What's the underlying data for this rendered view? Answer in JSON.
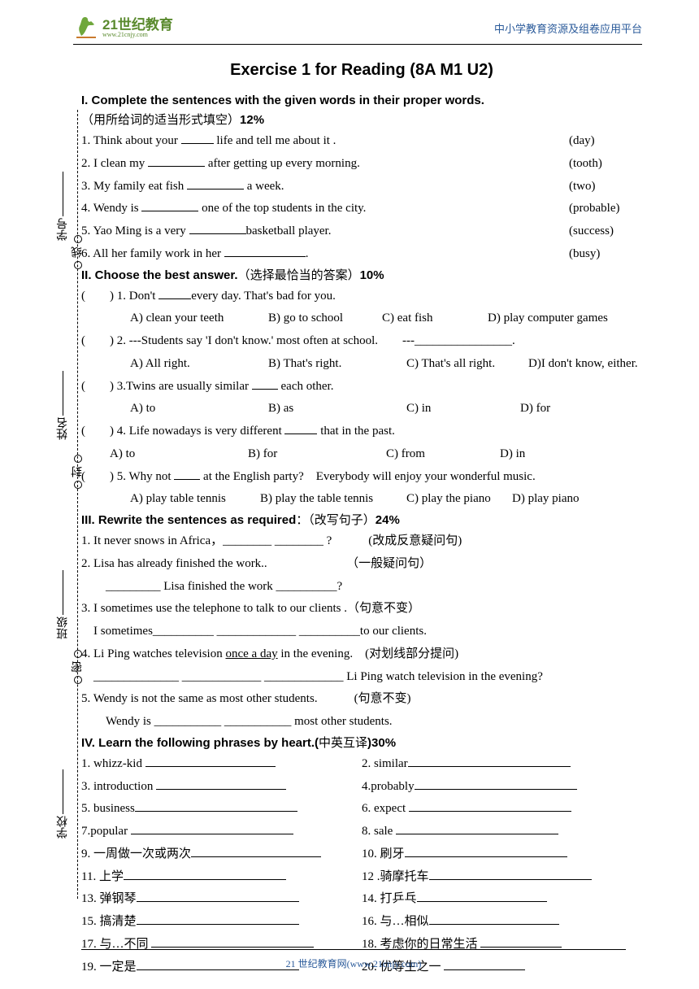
{
  "header": {
    "logo_brand": "21世纪教育",
    "logo_url": "www.21cnjy.com",
    "right_text": "中小学教育资源及组卷应用平台"
  },
  "title": "Exercise 1 for Reading (8A M1 U2)",
  "section1": {
    "header_en": "I. Complete the sentences with the given words in their proper words.",
    "header_cn": "（用所给词的适当形式填空）",
    "header_pct": "12%",
    "items": [
      {
        "text_a": "1. Think about your ",
        "text_b": " life and tell me about it .",
        "hint": "(day)",
        "blank": "blank-s"
      },
      {
        "text_a": "2. I clean my ",
        "text_b": " after getting up every morning.",
        "hint": "(tooth)",
        "blank": "blank-m"
      },
      {
        "text_a": "3. My family eat fish ",
        "text_b": " a week.",
        "hint": "(two)",
        "blank": "blank-m"
      },
      {
        "text_a": "4. Wendy is ",
        "text_b": " one of the top students in the city.",
        "hint": "(probable)",
        "blank": "blank-m"
      },
      {
        "text_a": "5. Yao Ming is a very ",
        "text_b": "basketball player.",
        "hint": "(success)",
        "blank": "blank-m"
      },
      {
        "text_a": "6. All her family work in her ",
        "text_b": ".",
        "hint": "(busy)",
        "blank": "blank-l"
      }
    ]
  },
  "section2": {
    "header_en": "II. Choose the best answer.",
    "header_cn": "（选择最恰当的答案）",
    "header_pct": "10%",
    "q1": {
      "stem_a": "(　　) 1. Don't ",
      "stem_b": "every day. That's bad for you.",
      "a": "A) clean your teeth",
      "b": "B) go to school",
      "c": "C) eat fish",
      "d": "D) play computer games"
    },
    "q2": {
      "stem": "(　　) 2. ---Students say 'I don't know.' most often at school.　　---________________.",
      "a": "A) All right.",
      "b": "B) That's right.",
      "c": "C) That's all right.",
      "d": "D)I don't know, either."
    },
    "q3": {
      "stem_a": "(　　) 3.Twins are usually similar ",
      "stem_b": " each other.",
      "a": "A) to",
      "b": "B) as",
      "c": "C) in",
      "d": "D) for"
    },
    "q4": {
      "stem_a": "(　　) 4. Life nowadays is very different ",
      "stem_b": " that in the past.",
      "a": "A) to",
      "b": "B) for",
      "c": "C) from",
      "d": "D) in"
    },
    "q5": {
      "stem_a": "(　　) 5. Why not ",
      "stem_b": " at the English party?　Everybody will enjoy your wonderful music.",
      "a": "A) play table tennis",
      "b": "B) play the table tennis",
      "c": "C) play the piano",
      "d": "D) play piano"
    }
  },
  "section3": {
    "header_en": "III. Rewrite the sentences as required",
    "header_cn": "：（改写句子）",
    "header_pct": "24%",
    "l1": "1. It never snows in Africa，________  ________ ?　　　(改成反意疑问句)",
    "l2": "2. Lisa has already finished the work..　　　　　　　（一般疑问句）",
    "l2b": "　　_________ Lisa finished the work  __________?",
    "l3": "3. I sometimes use the telephone to talk to our clients .（句意不变）",
    "l3b": "　I sometimes__________  _____________  __________to our clients.",
    "l4_a": "4. Li Ping watches television ",
    "l4_u": "once a day",
    "l4_b": " in the evening.　(对划线部分提问)",
    "l4b": "　______________  _____________  _____________ Li Ping watch television in the evening?",
    "l5": "5. Wendy is not the same as most other students.　　　(句意不变)",
    "l5b": "　　Wendy is  ___________  ___________  most other students."
  },
  "section4": {
    "header_en": "IV. Learn the following phrases by heart.(",
    "header_cn": "中英互译",
    "header_pct": ")30%",
    "rows": [
      [
        {
          "n": "1. whizz-kid ",
          "w": "blank-xl"
        },
        {
          "n": "2. similar",
          "w": "blank-xxl"
        }
      ],
      [
        {
          "n": "3. introduction ",
          "w": "blank-xl"
        },
        {
          "n": "4.probably",
          "w": "blank-xxl"
        }
      ],
      [
        {
          "n": "5. business",
          "w": "blank-xxl"
        },
        {
          "n": "6. expect ",
          "w": "blank-xxl"
        }
      ],
      [
        {
          "n": "7.popular ",
          "w": "blank-xxl"
        },
        {
          "n": "8. sale ",
          "w": "blank-xxl"
        }
      ],
      [
        {
          "n": "9.  一周做一次或两次",
          "w": "blank-xl"
        },
        {
          "n": "10.  刷牙",
          "w": "blank-xxl"
        }
      ],
      [
        {
          "n": "11.  上学",
          "w": "blank-xxl"
        },
        {
          "n": "12 .骑摩托车",
          "w": "blank-xxl"
        }
      ],
      [
        {
          "n": "13.  弹钢琴",
          "w": "blank-xxl"
        },
        {
          "n": "14. 打乒乓",
          "w": "blank-xl"
        }
      ],
      [
        {
          "n": "15.  搞清楚",
          "w": "blank-xxl"
        },
        {
          "n": "16. 与…相似",
          "w": "blank-xl"
        }
      ],
      [
        {
          "n": "17.  与…不同 ",
          "w": "blank-xxl"
        },
        {
          "n": "18.  考虑你的日常生活 ",
          "w": "blank-l"
        }
      ],
      [
        {
          "n": "19.  一定是",
          "w": "blank-xxl"
        },
        {
          "n": "20.  优等生之一 ",
          "w": "blank-l"
        }
      ]
    ]
  },
  "side": {
    "school": "学校",
    "class": "班级",
    "name": "姓名",
    "number": "学号",
    "seal1": "密",
    "seal2": "封",
    "seal3": "线"
  },
  "footer": "21 世纪教育网(www.21cnjy.com)"
}
